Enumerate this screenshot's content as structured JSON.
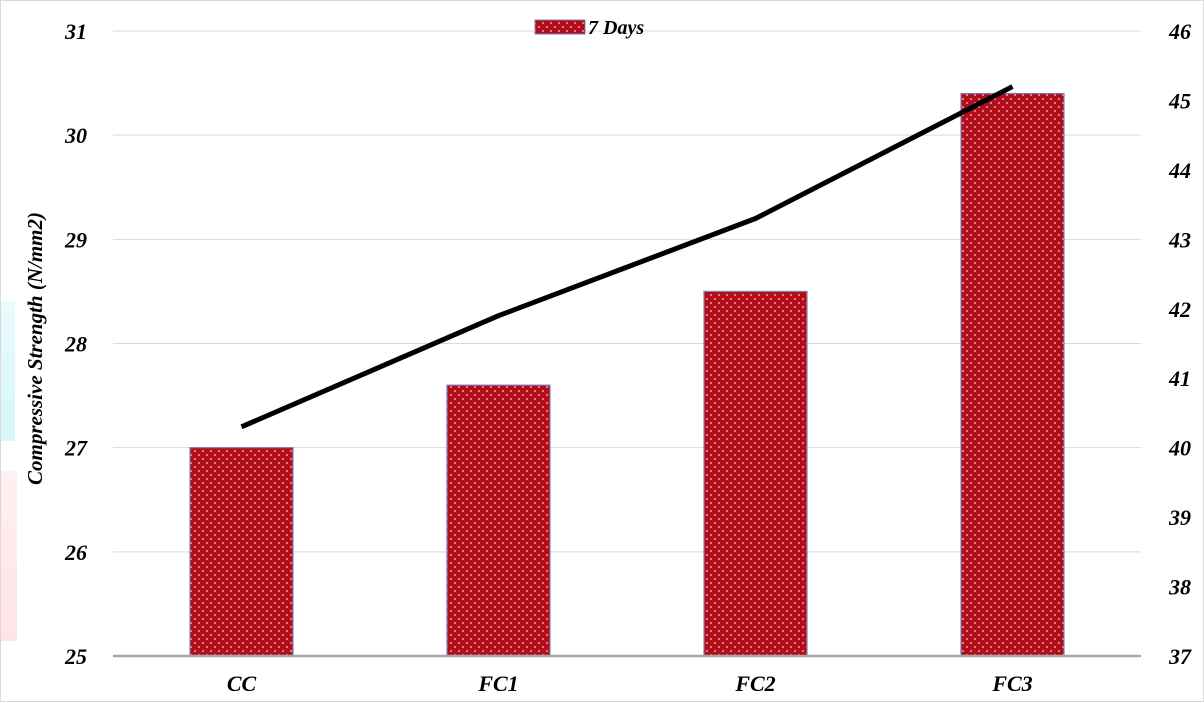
{
  "chart_data": {
    "type": "bar",
    "categories": [
      "CC",
      "FC1",
      "FC2",
      "FC3"
    ],
    "series": [
      {
        "name": "7 Days",
        "type": "bar",
        "axis": "left",
        "color": "#b30d1a",
        "values": [
          27.0,
          27.6,
          28.5,
          30.4
        ]
      },
      {
        "type": "line",
        "axis": "right",
        "color": "#000000",
        "values": [
          40.3,
          41.9,
          43.3,
          45.2
        ]
      }
    ],
    "ylabel": "Compressive Strength (N/mm2)",
    "xlabel": "",
    "title": "",
    "ylim": [
      25,
      31
    ],
    "ylim_right": [
      37,
      46
    ],
    "yticks": [
      "25",
      "26",
      "27",
      "28",
      "29",
      "30",
      "31"
    ],
    "yticks_right": [
      "37",
      "38",
      "39",
      "40",
      "41",
      "42",
      "43",
      "44",
      "45",
      "46"
    ],
    "grid": true,
    "legend": {
      "position": "top-center",
      "entries": [
        "7 Days"
      ]
    }
  }
}
